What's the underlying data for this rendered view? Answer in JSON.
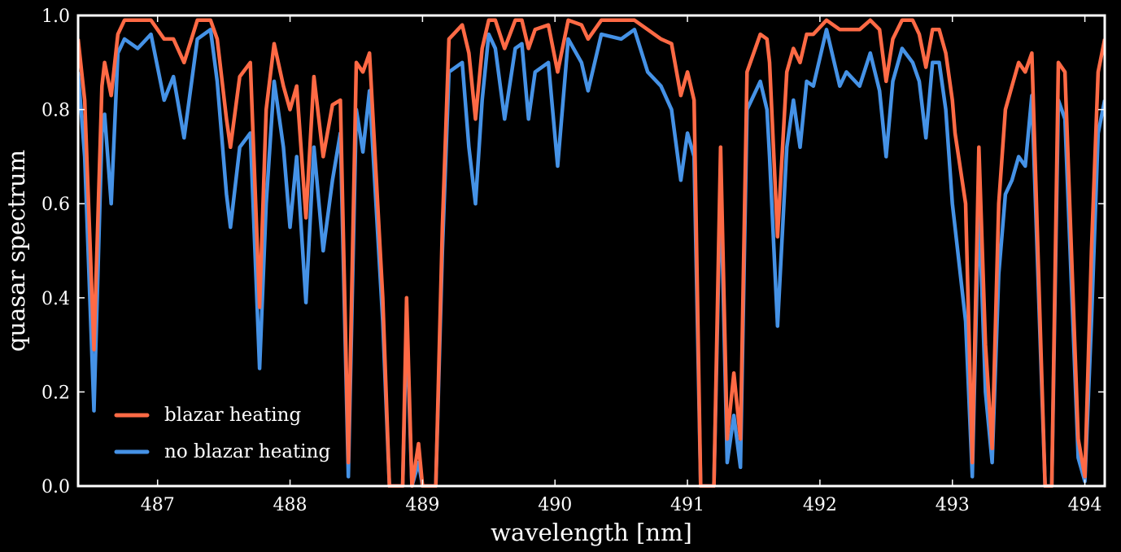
{
  "chart_data": {
    "type": "line",
    "title": "",
    "xlabel": "wavelength [nm]",
    "ylabel": "quasar spectrum",
    "xlim": [
      486.4,
      494.15
    ],
    "ylim": [
      0.0,
      1.0
    ],
    "x_ticks": [
      487,
      488,
      489,
      490,
      491,
      492,
      493,
      494
    ],
    "x_tick_labels": [
      "487",
      "488",
      "489",
      "490",
      "491",
      "492",
      "493",
      "494"
    ],
    "y_ticks": [
      0.0,
      0.2,
      0.4,
      0.6,
      0.8,
      1.0
    ],
    "y_tick_labels": [
      "0.0",
      "0.2",
      "0.4",
      "0.6",
      "0.8",
      "1.0"
    ],
    "grid": false,
    "legend_position": "bottom-left",
    "background": "#000000",
    "frame_color": "#ffffff",
    "series": [
      {
        "name": "blazar heating",
        "color": "#ff6a45",
        "points": [
          [
            486.4,
            0.95
          ],
          [
            486.45,
            0.82
          ],
          [
            486.52,
            0.29
          ],
          [
            486.58,
            0.85
          ],
          [
            486.6,
            0.9
          ],
          [
            486.65,
            0.83
          ],
          [
            486.7,
            0.96
          ],
          [
            486.75,
            0.99
          ],
          [
            486.85,
            0.99
          ],
          [
            486.95,
            0.99
          ],
          [
            487.05,
            0.95
          ],
          [
            487.12,
            0.95
          ],
          [
            487.2,
            0.9
          ],
          [
            487.3,
            0.99
          ],
          [
            487.4,
            0.99
          ],
          [
            487.45,
            0.95
          ],
          [
            487.52,
            0.78
          ],
          [
            487.55,
            0.72
          ],
          [
            487.62,
            0.87
          ],
          [
            487.7,
            0.9
          ],
          [
            487.77,
            0.38
          ],
          [
            487.82,
            0.8
          ],
          [
            487.88,
            0.94
          ],
          [
            487.95,
            0.85
          ],
          [
            488.0,
            0.8
          ],
          [
            488.05,
            0.85
          ],
          [
            488.12,
            0.57
          ],
          [
            488.18,
            0.87
          ],
          [
            488.25,
            0.7
          ],
          [
            488.32,
            0.81
          ],
          [
            488.38,
            0.82
          ],
          [
            488.44,
            0.05
          ],
          [
            488.5,
            0.9
          ],
          [
            488.55,
            0.88
          ],
          [
            488.6,
            0.92
          ],
          [
            488.7,
            0.4
          ],
          [
            488.75,
            0.0
          ],
          [
            488.85,
            0.0
          ],
          [
            488.88,
            0.4
          ],
          [
            488.92,
            0.0
          ],
          [
            488.97,
            0.09
          ],
          [
            489.0,
            0.0
          ],
          [
            489.1,
            0.0
          ],
          [
            489.15,
            0.55
          ],
          [
            489.2,
            0.95
          ],
          [
            489.3,
            0.98
          ],
          [
            489.35,
            0.92
          ],
          [
            489.4,
            0.78
          ],
          [
            489.45,
            0.93
          ],
          [
            489.5,
            0.99
          ],
          [
            489.55,
            0.99
          ],
          [
            489.62,
            0.93
          ],
          [
            489.7,
            0.99
          ],
          [
            489.75,
            0.99
          ],
          [
            489.8,
            0.93
          ],
          [
            489.85,
            0.97
          ],
          [
            489.95,
            0.98
          ],
          [
            490.02,
            0.88
          ],
          [
            490.1,
            0.99
          ],
          [
            490.2,
            0.98
          ],
          [
            490.25,
            0.95
          ],
          [
            490.35,
            0.99
          ],
          [
            490.5,
            0.99
          ],
          [
            490.6,
            0.99
          ],
          [
            490.7,
            0.97
          ],
          [
            490.8,
            0.95
          ],
          [
            490.88,
            0.94
          ],
          [
            490.95,
            0.83
          ],
          [
            491.0,
            0.88
          ],
          [
            491.05,
            0.82
          ],
          [
            491.1,
            0.0
          ],
          [
            491.15,
            0.0
          ],
          [
            491.2,
            0.0
          ],
          [
            491.25,
            0.72
          ],
          [
            491.3,
            0.1
          ],
          [
            491.35,
            0.24
          ],
          [
            491.4,
            0.1
          ],
          [
            491.45,
            0.88
          ],
          [
            491.55,
            0.96
          ],
          [
            491.6,
            0.95
          ],
          [
            491.62,
            0.9
          ],
          [
            491.68,
            0.53
          ],
          [
            491.75,
            0.88
          ],
          [
            491.8,
            0.93
          ],
          [
            491.85,
            0.9
          ],
          [
            491.9,
            0.96
          ],
          [
            491.95,
            0.96
          ],
          [
            492.05,
            0.99
          ],
          [
            492.15,
            0.97
          ],
          [
            492.2,
            0.97
          ],
          [
            492.3,
            0.97
          ],
          [
            492.38,
            0.99
          ],
          [
            492.45,
            0.97
          ],
          [
            492.5,
            0.86
          ],
          [
            492.55,
            0.95
          ],
          [
            492.62,
            0.99
          ],
          [
            492.7,
            0.99
          ],
          [
            492.75,
            0.96
          ],
          [
            492.8,
            0.89
          ],
          [
            492.85,
            0.97
          ],
          [
            492.9,
            0.97
          ],
          [
            492.95,
            0.92
          ],
          [
            493.0,
            0.82
          ],
          [
            493.02,
            0.75
          ],
          [
            493.1,
            0.6
          ],
          [
            493.15,
            0.05
          ],
          [
            493.2,
            0.72
          ],
          [
            493.25,
            0.3
          ],
          [
            493.3,
            0.08
          ],
          [
            493.35,
            0.6
          ],
          [
            493.4,
            0.8
          ],
          [
            493.45,
            0.85
          ],
          [
            493.5,
            0.9
          ],
          [
            493.55,
            0.88
          ],
          [
            493.6,
            0.92
          ],
          [
            493.7,
            0.0
          ],
          [
            493.75,
            0.0
          ],
          [
            493.8,
            0.9
          ],
          [
            493.85,
            0.88
          ],
          [
            493.95,
            0.1
          ],
          [
            494.0,
            0.02
          ],
          [
            494.05,
            0.5
          ],
          [
            494.1,
            0.88
          ],
          [
            494.15,
            0.95
          ]
        ]
      },
      {
        "name": "no blazar heating",
        "color": "#4592e6",
        "points": [
          [
            486.4,
            0.88
          ],
          [
            486.45,
            0.7
          ],
          [
            486.52,
            0.16
          ],
          [
            486.58,
            0.75
          ],
          [
            486.6,
            0.79
          ],
          [
            486.65,
            0.6
          ],
          [
            486.7,
            0.92
          ],
          [
            486.75,
            0.95
          ],
          [
            486.85,
            0.93
          ],
          [
            486.95,
            0.96
          ],
          [
            487.05,
            0.82
          ],
          [
            487.12,
            0.87
          ],
          [
            487.2,
            0.74
          ],
          [
            487.3,
            0.95
          ],
          [
            487.4,
            0.97
          ],
          [
            487.45,
            0.86
          ],
          [
            487.52,
            0.62
          ],
          [
            487.55,
            0.55
          ],
          [
            487.62,
            0.72
          ],
          [
            487.7,
            0.75
          ],
          [
            487.77,
            0.25
          ],
          [
            487.82,
            0.6
          ],
          [
            487.88,
            0.86
          ],
          [
            487.95,
            0.72
          ],
          [
            488.0,
            0.55
          ],
          [
            488.05,
            0.7
          ],
          [
            488.12,
            0.39
          ],
          [
            488.18,
            0.72
          ],
          [
            488.25,
            0.5
          ],
          [
            488.32,
            0.65
          ],
          [
            488.38,
            0.75
          ],
          [
            488.44,
            0.02
          ],
          [
            488.5,
            0.8
          ],
          [
            488.55,
            0.71
          ],
          [
            488.6,
            0.84
          ],
          [
            488.7,
            0.35
          ],
          [
            488.75,
            0.0
          ],
          [
            488.85,
            0.0
          ],
          [
            488.88,
            0.35
          ],
          [
            488.92,
            0.0
          ],
          [
            488.97,
            0.05
          ],
          [
            489.0,
            0.0
          ],
          [
            489.1,
            0.0
          ],
          [
            489.15,
            0.5
          ],
          [
            489.2,
            0.88
          ],
          [
            489.3,
            0.9
          ],
          [
            489.35,
            0.72
          ],
          [
            489.4,
            0.6
          ],
          [
            489.45,
            0.82
          ],
          [
            489.5,
            0.96
          ],
          [
            489.55,
            0.93
          ],
          [
            489.62,
            0.78
          ],
          [
            489.7,
            0.93
          ],
          [
            489.75,
            0.94
          ],
          [
            489.8,
            0.78
          ],
          [
            489.85,
            0.88
          ],
          [
            489.95,
            0.9
          ],
          [
            490.02,
            0.68
          ],
          [
            490.1,
            0.95
          ],
          [
            490.2,
            0.9
          ],
          [
            490.25,
            0.84
          ],
          [
            490.35,
            0.96
          ],
          [
            490.5,
            0.95
          ],
          [
            490.6,
            0.97
          ],
          [
            490.7,
            0.88
          ],
          [
            490.8,
            0.85
          ],
          [
            490.88,
            0.8
          ],
          [
            490.95,
            0.65
          ],
          [
            491.0,
            0.75
          ],
          [
            491.05,
            0.7
          ],
          [
            491.1,
            0.0
          ],
          [
            491.15,
            0.0
          ],
          [
            491.2,
            0.0
          ],
          [
            491.25,
            0.65
          ],
          [
            491.3,
            0.05
          ],
          [
            491.35,
            0.15
          ],
          [
            491.4,
            0.04
          ],
          [
            491.45,
            0.8
          ],
          [
            491.55,
            0.86
          ],
          [
            491.6,
            0.8
          ],
          [
            491.62,
            0.7
          ],
          [
            491.68,
            0.34
          ],
          [
            491.75,
            0.72
          ],
          [
            491.8,
            0.82
          ],
          [
            491.85,
            0.72
          ],
          [
            491.9,
            0.86
          ],
          [
            491.95,
            0.85
          ],
          [
            492.05,
            0.97
          ],
          [
            492.15,
            0.85
          ],
          [
            492.2,
            0.88
          ],
          [
            492.3,
            0.85
          ],
          [
            492.38,
            0.92
          ],
          [
            492.45,
            0.84
          ],
          [
            492.5,
            0.7
          ],
          [
            492.55,
            0.86
          ],
          [
            492.62,
            0.93
          ],
          [
            492.7,
            0.9
          ],
          [
            492.75,
            0.86
          ],
          [
            492.8,
            0.74
          ],
          [
            492.85,
            0.9
          ],
          [
            492.9,
            0.9
          ],
          [
            492.95,
            0.8
          ],
          [
            493.0,
            0.6
          ],
          [
            493.02,
            0.55
          ],
          [
            493.1,
            0.35
          ],
          [
            493.15,
            0.02
          ],
          [
            493.2,
            0.6
          ],
          [
            493.25,
            0.2
          ],
          [
            493.3,
            0.05
          ],
          [
            493.35,
            0.45
          ],
          [
            493.4,
            0.62
          ],
          [
            493.45,
            0.65
          ],
          [
            493.5,
            0.7
          ],
          [
            493.55,
            0.68
          ],
          [
            493.6,
            0.83
          ],
          [
            493.7,
            0.0
          ],
          [
            493.75,
            0.0
          ],
          [
            493.8,
            0.82
          ],
          [
            493.85,
            0.78
          ],
          [
            493.95,
            0.06
          ],
          [
            494.0,
            0.01
          ],
          [
            494.05,
            0.35
          ],
          [
            494.1,
            0.75
          ],
          [
            494.15,
            0.82
          ]
        ]
      }
    ]
  }
}
